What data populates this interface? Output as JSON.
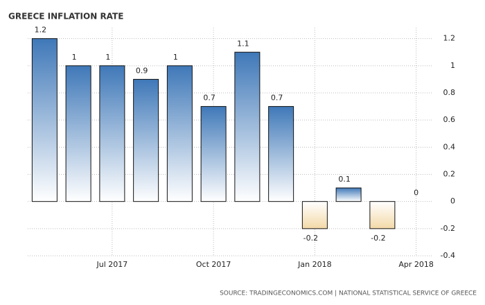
{
  "chart_data": {
    "type": "bar",
    "title": "GREECE INFLATION RATE",
    "source": "SOURCE: TRADINGECONOMICS.COM | NATIONAL STATISTICAL SERVICE OF GREECE",
    "categories": [
      null,
      null,
      "Jul 2017",
      null,
      null,
      "Oct 2017",
      null,
      null,
      "Jan 2018",
      null,
      null,
      "Apr 2018"
    ],
    "values": [
      1.2,
      1,
      1,
      0.9,
      1,
      0.7,
      1.1,
      0.7,
      -0.2,
      0.1,
      -0.2,
      0
    ],
    "color": "#3f78b8",
    "negative_color": "#f3d9a8",
    "ylim": [
      -0.4,
      1.28
    ],
    "yticks": [
      -0.4,
      -0.2,
      0,
      0.2,
      0.4,
      0.6,
      0.8,
      1,
      1.2
    ],
    "grid": true
  }
}
